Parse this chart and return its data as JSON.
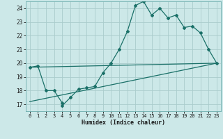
{
  "xlabel": "Humidex (Indice chaleur)",
  "bg_color": "#cce8e8",
  "line_color": "#1a7068",
  "grid_color": "#aacccc",
  "xlim": [
    -0.5,
    23.5
  ],
  "ylim": [
    16.5,
    24.5
  ],
  "yticks": [
    17,
    18,
    19,
    20,
    21,
    22,
    23,
    24
  ],
  "xticks": [
    0,
    1,
    2,
    3,
    4,
    5,
    6,
    7,
    8,
    9,
    10,
    11,
    12,
    13,
    14,
    15,
    16,
    17,
    18,
    19,
    20,
    21,
    22,
    23
  ],
  "series1_x": [
    0,
    1,
    2,
    3,
    4,
    4,
    5,
    6,
    7,
    8,
    9,
    10,
    11,
    12,
    13,
    14,
    15,
    16,
    17,
    18,
    19,
    20,
    21,
    22,
    23
  ],
  "series1_y": [
    19.7,
    19.8,
    18.0,
    18.0,
    17.1,
    16.9,
    17.5,
    18.1,
    18.2,
    18.3,
    19.3,
    20.0,
    21.0,
    22.3,
    24.2,
    24.5,
    23.5,
    24.0,
    23.3,
    23.5,
    22.6,
    22.7,
    22.2,
    21.0,
    20.0
  ],
  "series2_x": [
    0,
    23
  ],
  "series2_y": [
    17.2,
    20.0
  ],
  "series3_x": [
    0,
    23
  ],
  "series3_y": [
    19.7,
    20.0
  ]
}
